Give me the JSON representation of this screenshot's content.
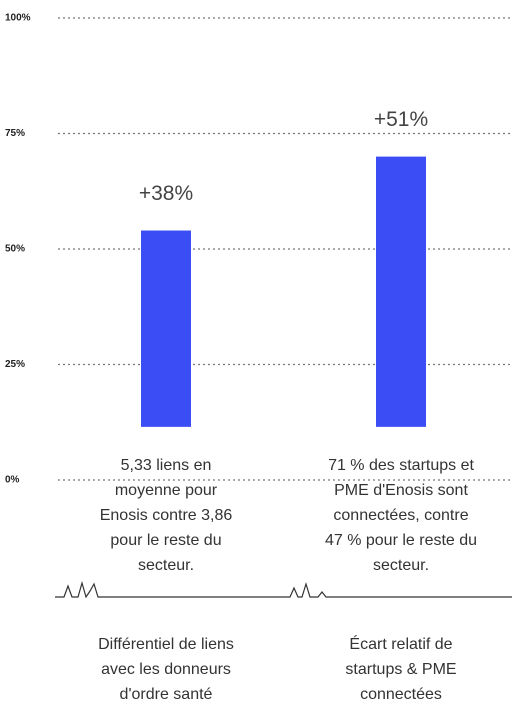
{
  "chart_data": {
    "type": "bar",
    "categories": [
      null,
      null
    ],
    "series": [
      {
        "color": "#3b4ef5",
        "low": [
          11.5,
          11.5
        ],
        "values": [
          54,
          70
        ]
      }
    ],
    "annotations": [
      "+38%",
      "+51%"
    ],
    "descriptions": [
      [
        "5,33 liens en",
        "moyenne pour",
        "Enosis contre 3,86",
        "pour le reste du",
        "secteur."
      ],
      [
        "71 % des startups et",
        "PME d'Enosis sont",
        "connectées, contre",
        "47 % pour le reste du",
        "secteur."
      ]
    ],
    "captions": [
      [
        "Différentiel de liens",
        "avec les donneurs",
        "d'ordre santé"
      ],
      [
        "Écart relatif de",
        "startups & PME",
        "connectées"
      ]
    ],
    "ylim": [
      0,
      100
    ],
    "yticks": [
      {
        "value": 0,
        "label": "0%"
      },
      {
        "value": 25,
        "label": "25%"
      },
      {
        "value": 50,
        "label": "50%"
      },
      {
        "value": 75,
        "label": "75%"
      },
      {
        "value": 100,
        "label": "100%"
      }
    ],
    "grid": true
  }
}
